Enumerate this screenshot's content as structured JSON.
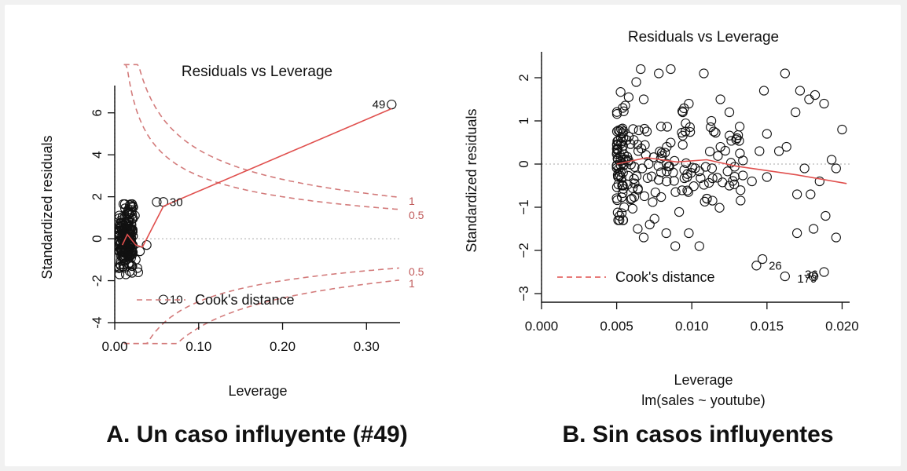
{
  "captions": {
    "left": "A. Un caso influyente (#49)",
    "right": "B. Sin casos influyentes"
  },
  "colors": {
    "cook": "#d37b7b",
    "smooth": "#e0504e",
    "points": "#111111",
    "zero": "#bbbbbb"
  },
  "chart_data": [
    {
      "type": "scatter",
      "title": "Residuals vs Leverage",
      "xlabel": "Leverage",
      "subtitle": "",
      "ylabel": "Standardized residuals",
      "xlim": [
        0,
        0.34
      ],
      "ylim": [
        -4,
        7.3
      ],
      "xticks": [
        0.0,
        0.1,
        0.2,
        0.3
      ],
      "xtick_labels": [
        "0.00",
        "0.10",
        "0.20",
        "0.30"
      ],
      "yticks": [
        -4,
        -2,
        0,
        2,
        4,
        6
      ],
      "ytick_labels": [
        "-4",
        "-2",
        "0",
        "2",
        "4",
        "6"
      ],
      "legend": {
        "label": "Cook's distance",
        "position": "bottom-left"
      },
      "cook_labels": {
        "upper_1": "1",
        "upper_05": "0.5",
        "lower_05": "0.5",
        "lower_1": "1"
      },
      "annotations": [
        {
          "label": "49",
          "x": 0.33,
          "y": 6.4
        },
        {
          "label": "30",
          "x": 0.058,
          "y": 1.75
        },
        {
          "label": "10",
          "x": 0.058,
          "y": -2.9
        }
      ],
      "points": [
        [
          0.33,
          6.4
        ],
        [
          0.05,
          1.75
        ],
        [
          0.058,
          1.75
        ],
        [
          0.058,
          -2.9
        ],
        [
          0.038,
          -0.3
        ],
        [
          0.03,
          -0.6
        ],
        [
          0.025,
          -1.0
        ],
        [
          0.024,
          1.1
        ],
        [
          0.022,
          1.5
        ],
        [
          0.027,
          -1.4
        ],
        [
          0.028,
          -1.6
        ],
        [
          0.02,
          -1.3
        ],
        [
          0.018,
          1.6
        ]
      ],
      "smooth": [
        [
          0.009,
          -0.3
        ],
        [
          0.015,
          0.2
        ],
        [
          0.025,
          -0.3
        ],
        [
          0.033,
          -0.4
        ],
        [
          0.058,
          1.55
        ],
        [
          0.33,
          6.2
        ]
      ]
    },
    {
      "type": "scatter",
      "title": "Residuals vs Leverage",
      "xlabel": "Leverage",
      "subtitle": "lm(sales ~ youtube)",
      "ylabel": "Standardized residuals",
      "xlim": [
        0,
        0.0205
      ],
      "ylim": [
        -3.2,
        2.6
      ],
      "xticks": [
        0.0,
        0.005,
        0.01,
        0.015,
        0.02
      ],
      "xtick_labels": [
        "0.000",
        "0.005",
        "0.010",
        "0.015",
        "0.020"
      ],
      "yticks": [
        -3,
        -2,
        -1,
        0,
        1,
        2
      ],
      "ytick_labels": [
        "−3",
        "−2",
        "−1",
        "0",
        "1",
        "2"
      ],
      "legend": {
        "label": "Cook's distance",
        "position": "bottom-left"
      },
      "annotations": [
        {
          "label": "26",
          "x": 0.0147,
          "y": -2.35
        },
        {
          "label": "179",
          "x": 0.0166,
          "y": -2.65
        },
        {
          "label": "36",
          "x": 0.0171,
          "y": -2.55
        }
      ],
      "points": [
        [
          0.0066,
          2.2
        ],
        [
          0.0086,
          2.2
        ],
        [
          0.0078,
          2.1
        ],
        [
          0.0108,
          2.1
        ],
        [
          0.0162,
          2.1
        ],
        [
          0.0063,
          1.9
        ],
        [
          0.0172,
          1.7
        ],
        [
          0.0182,
          1.6
        ],
        [
          0.0148,
          1.7
        ],
        [
          0.0058,
          1.55
        ],
        [
          0.0068,
          1.5
        ],
        [
          0.0098,
          1.4
        ],
        [
          0.0119,
          1.5
        ],
        [
          0.0178,
          1.5
        ],
        [
          0.0094,
          1.2
        ],
        [
          0.0125,
          1.2
        ],
        [
          0.0188,
          1.4
        ],
        [
          0.0054,
          1.3
        ],
        [
          0.0113,
          1.0
        ],
        [
          0.0169,
          1.2
        ],
        [
          0.02,
          0.8
        ],
        [
          0.015,
          0.7
        ],
        [
          0.013,
          0.6
        ],
        [
          0.0145,
          0.3
        ],
        [
          0.0158,
          0.3
        ],
        [
          0.0163,
          0.4
        ],
        [
          0.0175,
          -0.1
        ],
        [
          0.0185,
          -0.4
        ],
        [
          0.0196,
          -0.1
        ],
        [
          0.0193,
          0.1
        ],
        [
          0.017,
          -0.7
        ],
        [
          0.0179,
          -0.7
        ],
        [
          0.0189,
          -1.2
        ],
        [
          0.0181,
          -1.5
        ],
        [
          0.017,
          -1.6
        ],
        [
          0.0196,
          -1.7
        ],
        [
          0.015,
          -0.3
        ],
        [
          0.014,
          -0.4
        ],
        [
          0.0125,
          -0.5
        ],
        [
          0.011,
          -0.8
        ],
        [
          0.0105,
          -1.9
        ],
        [
          0.0089,
          -1.9
        ],
        [
          0.0098,
          -1.6
        ],
        [
          0.0083,
          -1.6
        ],
        [
          0.0068,
          -1.7
        ],
        [
          0.0072,
          -1.4
        ],
        [
          0.0064,
          -1.5
        ],
        [
          0.0052,
          -1.2
        ],
        [
          0.0055,
          -1.0
        ],
        [
          0.006,
          -0.8
        ],
        [
          0.0147,
          -2.2
        ],
        [
          0.0143,
          -2.35
        ],
        [
          0.0162,
          -2.6
        ],
        [
          0.0188,
          -2.5
        ],
        [
          0.0181,
          -2.6
        ]
      ],
      "smooth": [
        [
          0.005,
          0.0
        ],
        [
          0.007,
          0.15
        ],
        [
          0.009,
          0.05
        ],
        [
          0.011,
          0.1
        ],
        [
          0.013,
          -0.05
        ],
        [
          0.015,
          -0.15
        ],
        [
          0.017,
          -0.25
        ],
        [
          0.0203,
          -0.45
        ]
      ]
    }
  ]
}
